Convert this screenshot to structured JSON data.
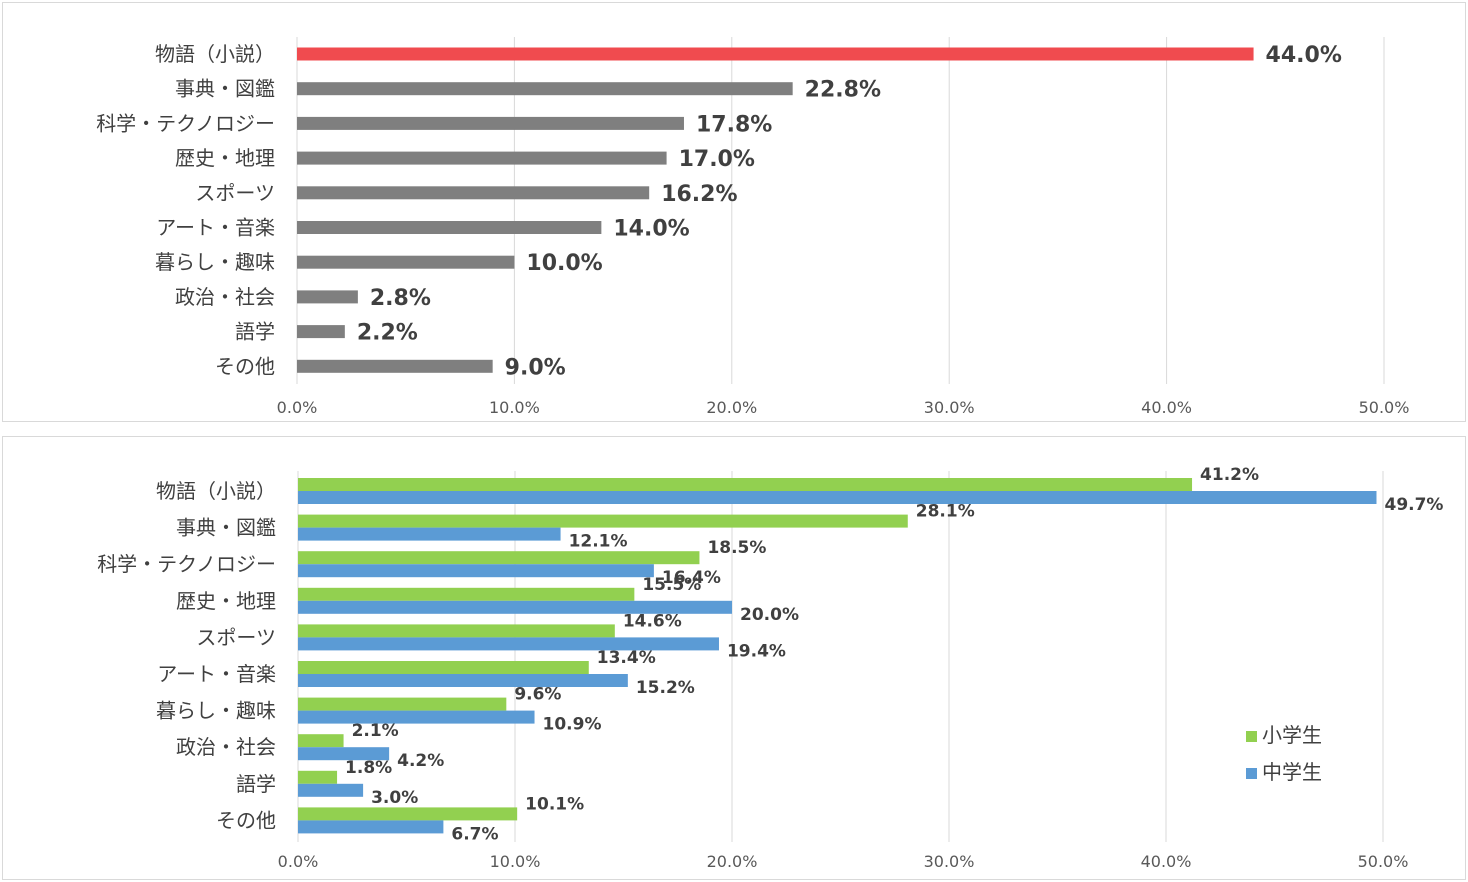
{
  "chart_data": [
    {
      "type": "bar",
      "orientation": "horizontal",
      "categories": [
        "物語（小説）",
        "事典・図鑑",
        "科学・テクノロジー",
        "歴史・地理",
        "スポーツ",
        "アート・音楽",
        "暮らし・趣味",
        "政治・社会",
        "語学",
        "その他"
      ],
      "values": [
        44.0,
        22.8,
        17.8,
        17.0,
        16.2,
        14.0,
        10.0,
        2.8,
        2.2,
        9.0
      ],
      "value_labels": [
        "44.0%",
        "22.8%",
        "17.8%",
        "17.0%",
        "16.2%",
        "14.0%",
        "10.0%",
        "2.8%",
        "2.2%",
        "9.0%"
      ],
      "xlim": [
        0,
        50
      ],
      "x_ticks": [
        "0.0%",
        "10.0%",
        "20.0%",
        "30.0%",
        "40.0%",
        "50.0%"
      ],
      "colors": {
        "highlight": "#f04b4f",
        "default": "#7f7f7f",
        "grid": "#d9d9d9"
      },
      "highlight_index": 0,
      "grid": true
    },
    {
      "type": "bar",
      "orientation": "horizontal",
      "categories": [
        "物語（小説）",
        "事典・図鑑",
        "科学・テクノロジー",
        "歴史・地理",
        "スポーツ",
        "アート・音楽",
        "暮らし・趣味",
        "政治・社会",
        "語学",
        "その他"
      ],
      "series": [
        {
          "name": "小学生",
          "color": "#92d050",
          "values": [
            41.2,
            28.1,
            18.5,
            15.5,
            14.6,
            13.4,
            9.6,
            2.1,
            1.8,
            10.1
          ],
          "value_labels": [
            "41.2%",
            "28.1%",
            "18.5%",
            "15.5%",
            "14.6%",
            "13.4%",
            "9.6%",
            "2.1%",
            "1.8%",
            "10.1%"
          ]
        },
        {
          "name": "中学生",
          "color": "#5b9bd5",
          "values": [
            49.7,
            12.1,
            16.4,
            20.0,
            19.4,
            15.2,
            10.9,
            4.2,
            3.0,
            6.7
          ],
          "value_labels": [
            "49.7%",
            "12.1%",
            "16.4%",
            "20.0%",
            "19.4%",
            "15.2%",
            "10.9%",
            "4.2%",
            "3.0%",
            "6.7%"
          ]
        }
      ],
      "xlim": [
        0,
        50
      ],
      "x_ticks": [
        "0.0%",
        "10.0%",
        "20.0%",
        "30.0%",
        "40.0%",
        "50.0%"
      ],
      "legend": "bottom-right",
      "grid": true
    }
  ]
}
